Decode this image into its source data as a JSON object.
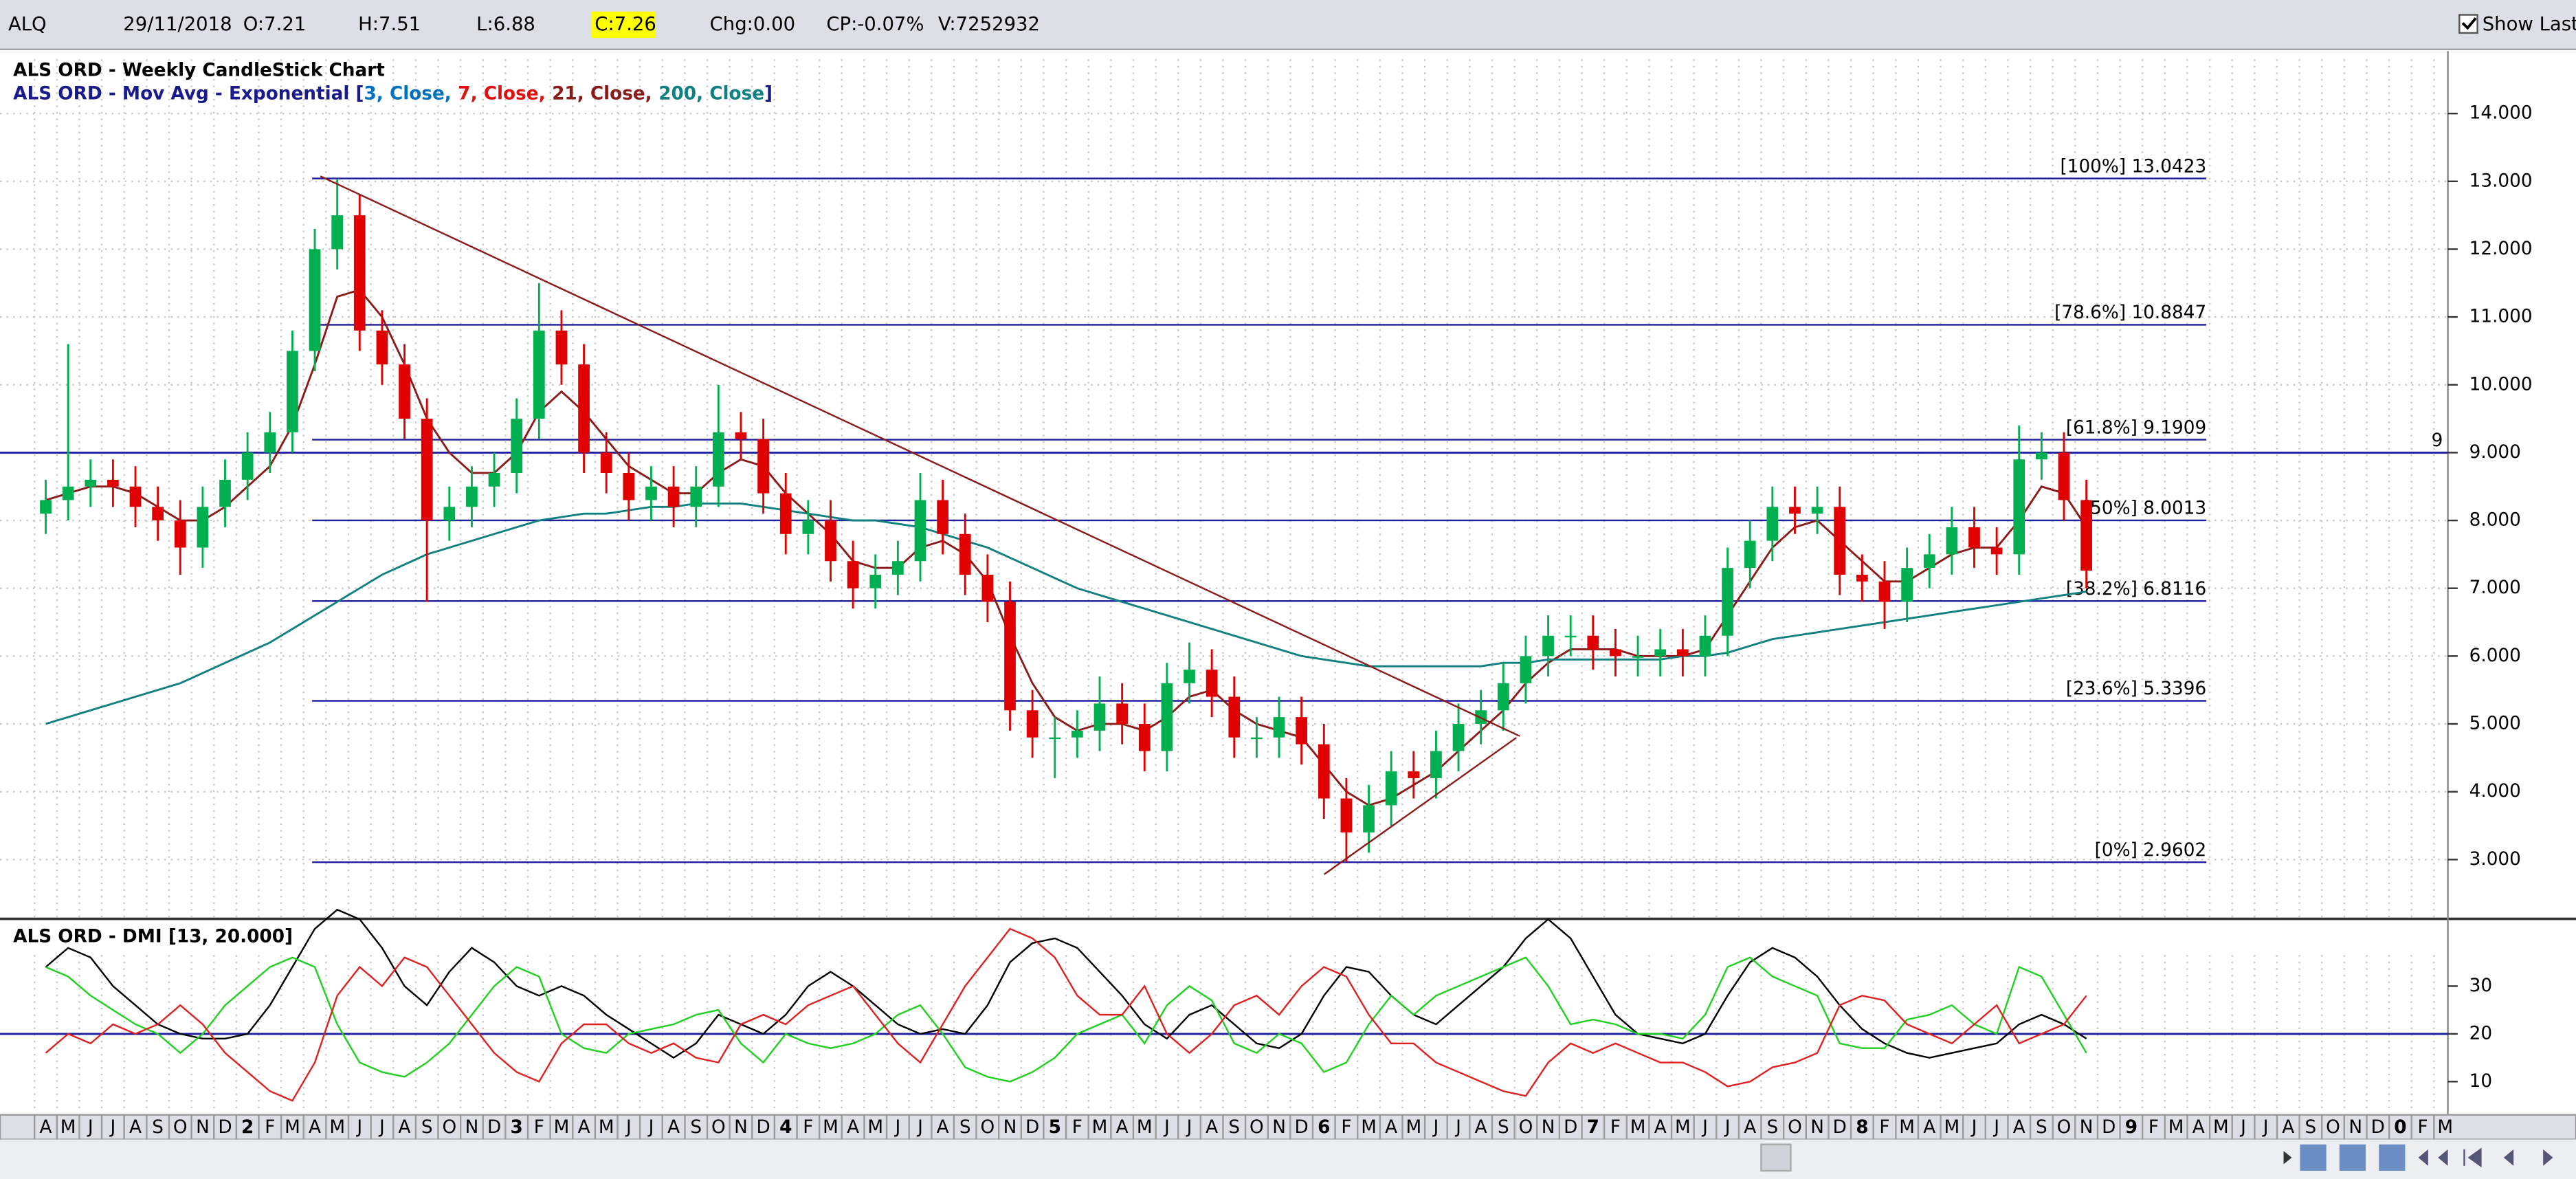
{
  "header": {
    "symbol": "ALQ",
    "date": "29/11/2018",
    "open": "O:7.21",
    "high": "H:7.51",
    "low": "L:6.88",
    "close": "C:7.26",
    "change": "Chg:0.00",
    "change_pct": "CP:-0.07%",
    "volume": "V:7252932",
    "show_last": "Show Last"
  },
  "chart_data": [
    {
      "type": "candlestick",
      "title": "ALS ORD - Weekly CandleStick Chart",
      "legend_prefix": "ALS ORD - Mov Avg - Exponential [",
      "legend": [
        {
          "text": "3, Close,",
          "color": "#0070c0"
        },
        {
          "text": "7, Close,",
          "color": "#e01010"
        },
        {
          "text": "21, Close,",
          "color": "#8b1a1a"
        },
        {
          "text": "200, Close",
          "color": "#108080"
        }
      ],
      "legend_suffix": "]",
      "categories": [
        "A",
        "M",
        "J",
        "J",
        "A",
        "S",
        "O",
        "N",
        "D",
        "2",
        "F",
        "M",
        "A",
        "M",
        "J",
        "J",
        "A",
        "S",
        "O",
        "N",
        "D",
        "3",
        "F",
        "M",
        "A",
        "M",
        "J",
        "J",
        "A",
        "S",
        "O",
        "N",
        "D",
        "4",
        "F",
        "M",
        "A",
        "M",
        "J",
        "J",
        "A",
        "S",
        "O",
        "N",
        "D",
        "5",
        "F",
        "M",
        "A",
        "M",
        "J",
        "J",
        "A",
        "S",
        "O",
        "N",
        "D",
        "6",
        "F",
        "M",
        "A",
        "M",
        "J",
        "J",
        "A",
        "S",
        "O",
        "N",
        "D",
        "7",
        "F",
        "M",
        "A",
        "M",
        "J",
        "J",
        "A",
        "S",
        "O",
        "N",
        "D",
        "8",
        "F",
        "M",
        "A",
        "M",
        "J",
        "J",
        "A",
        "S",
        "O",
        "N",
        "D",
        "9",
        "F",
        "M",
        "A",
        "M",
        "J",
        "J",
        "A",
        "S",
        "O",
        "N",
        "D",
        "0",
        "F",
        "M"
      ],
      "open": [
        8.1,
        8.3,
        8.5,
        8.6,
        8.5,
        8.2,
        8.0,
        7.6,
        8.2,
        8.6,
        9.0,
        9.3,
        10.5,
        12.0,
        12.5,
        10.8,
        10.3,
        9.5,
        8.0,
        8.2,
        8.5,
        8.7,
        9.5,
        10.8,
        10.3,
        9.0,
        8.7,
        8.3,
        8.5,
        8.2,
        8.5,
        9.3,
        9.2,
        8.4,
        7.8,
        8.0,
        7.4,
        7.0,
        7.2,
        7.4,
        8.3,
        7.8,
        7.2,
        6.8,
        5.2,
        4.8,
        4.8,
        4.9,
        5.3,
        5.0,
        4.6,
        5.6,
        5.8,
        5.4,
        4.8,
        4.8,
        5.1,
        4.7,
        3.9,
        3.4,
        3.8,
        4.3,
        4.2,
        4.6,
        5.0,
        5.2,
        5.6,
        6.0,
        6.3,
        6.3,
        6.1,
        6.0,
        6.0,
        6.1,
        6.0,
        6.3,
        7.3,
        7.7,
        8.2,
        8.1,
        8.2,
        7.2,
        7.1,
        6.8,
        7.3,
        7.5,
        7.9,
        7.6,
        7.5,
        8.9,
        9.0,
        8.3,
        null,
        null,
        null,
        null,
        null,
        null,
        null,
        null,
        null,
        null,
        null,
        null,
        null,
        null,
        null,
        null
      ],
      "high": [
        8.6,
        10.6,
        8.9,
        8.9,
        8.8,
        8.5,
        8.3,
        8.5,
        8.9,
        9.3,
        9.6,
        10.8,
        12.3,
        13.04,
        12.8,
        11.1,
        10.6,
        9.8,
        8.5,
        8.8,
        9.0,
        9.8,
        11.5,
        11.1,
        10.6,
        9.3,
        9.0,
        8.8,
        8.8,
        8.8,
        10.0,
        9.6,
        9.5,
        8.7,
        8.3,
        8.3,
        7.7,
        7.5,
        7.7,
        8.7,
        8.6,
        8.1,
        7.5,
        7.1,
        5.5,
        5.1,
        5.2,
        5.7,
        5.6,
        5.3,
        5.9,
        6.2,
        6.1,
        5.7,
        5.1,
        5.4,
        5.4,
        5.0,
        4.2,
        4.1,
        4.6,
        4.6,
        4.9,
        5.3,
        5.5,
        5.9,
        6.3,
        6.6,
        6.6,
        6.6,
        6.4,
        6.3,
        6.4,
        6.4,
        6.6,
        7.6,
        8.0,
        8.5,
        8.5,
        8.5,
        8.5,
        7.5,
        7.4,
        7.6,
        7.8,
        8.2,
        8.2,
        7.9,
        9.4,
        9.3,
        9.3,
        8.6,
        null,
        null,
        null,
        null,
        null,
        null,
        null,
        null,
        null,
        null,
        null,
        null,
        null,
        null,
        null,
        null
      ],
      "low": [
        7.8,
        8.0,
        8.2,
        8.2,
        7.9,
        7.7,
        7.2,
        7.3,
        7.9,
        8.3,
        8.7,
        9.0,
        10.2,
        11.7,
        10.5,
        10.0,
        9.2,
        6.8,
        7.7,
        7.9,
        8.2,
        8.4,
        9.2,
        10.0,
        8.7,
        8.4,
        8.0,
        8.0,
        7.9,
        7.9,
        8.2,
        8.9,
        8.1,
        7.5,
        7.5,
        7.1,
        6.7,
        6.7,
        6.9,
        7.1,
        7.5,
        6.9,
        6.5,
        4.9,
        4.5,
        4.2,
        4.5,
        4.6,
        4.7,
        4.3,
        4.3,
        5.3,
        5.1,
        4.5,
        4.5,
        4.5,
        4.4,
        3.6,
        2.96,
        3.1,
        3.5,
        3.9,
        3.9,
        4.3,
        4.7,
        4.9,
        5.3,
        5.7,
        6.0,
        5.8,
        5.7,
        5.7,
        5.7,
        5.7,
        5.7,
        6.0,
        7.0,
        7.4,
        7.8,
        7.8,
        6.9,
        6.8,
        6.4,
        6.5,
        7.0,
        7.2,
        7.3,
        7.2,
        7.2,
        8.6,
        8.0,
        7.0,
        null,
        null,
        null,
        null,
        null,
        null,
        null,
        null,
        null,
        null,
        null,
        null,
        null,
        null,
        null,
        null
      ],
      "close": [
        8.3,
        8.5,
        8.6,
        8.5,
        8.2,
        8.0,
        7.6,
        8.2,
        8.6,
        9.0,
        9.3,
        10.5,
        12.0,
        12.5,
        10.8,
        10.3,
        9.5,
        8.0,
        8.2,
        8.5,
        8.7,
        9.5,
        10.8,
        10.3,
        9.0,
        8.7,
        8.3,
        8.5,
        8.2,
        8.5,
        9.3,
        9.2,
        8.4,
        7.8,
        8.0,
        7.4,
        7.0,
        7.2,
        7.4,
        8.3,
        7.8,
        7.2,
        6.8,
        5.2,
        4.8,
        4.8,
        4.9,
        5.3,
        5.0,
        4.6,
        5.6,
        5.8,
        5.4,
        4.8,
        4.8,
        5.1,
        4.7,
        3.9,
        3.4,
        3.8,
        4.3,
        4.2,
        4.6,
        5.0,
        5.2,
        5.6,
        6.0,
        6.3,
        6.3,
        6.1,
        6.0,
        6.0,
        6.1,
        6.0,
        6.3,
        7.3,
        7.7,
        8.2,
        8.1,
        8.2,
        7.2,
        7.1,
        6.8,
        7.3,
        7.5,
        7.9,
        7.6,
        7.5,
        8.9,
        9.0,
        8.3,
        7.26,
        null,
        null,
        null,
        null,
        null,
        null,
        null,
        null,
        null,
        null,
        null,
        null,
        null,
        null,
        null,
        null
      ],
      "up_color": "#00b050",
      "down_color": "#e00000",
      "lines": [
        {
          "color": "#8b1a1a",
          "values": [
            8.3,
            8.4,
            8.5,
            8.5,
            8.4,
            8.2,
            8.0,
            8.0,
            8.2,
            8.5,
            8.8,
            9.4,
            10.3,
            11.3,
            11.4,
            11.0,
            10.3,
            9.5,
            9.0,
            8.7,
            8.7,
            9.0,
            9.6,
            9.9,
            9.6,
            9.2,
            8.8,
            8.6,
            8.4,
            8.4,
            8.7,
            8.9,
            8.8,
            8.4,
            8.1,
            7.8,
            7.4,
            7.3,
            7.3,
            7.6,
            7.7,
            7.5,
            7.1,
            6.3,
            5.6,
            5.1,
            4.9,
            5.0,
            5.0,
            4.9,
            5.1,
            5.4,
            5.5,
            5.2,
            5.0,
            4.9,
            4.8,
            4.4,
            4.0,
            3.8,
            3.9,
            4.1,
            4.3,
            4.6,
            4.9,
            5.2,
            5.6,
            5.9,
            6.1,
            6.1,
            6.1,
            6.0,
            6.0,
            6.0,
            6.1,
            6.6,
            7.1,
            7.6,
            7.9,
            8.0,
            7.7,
            7.4,
            7.1,
            7.1,
            7.3,
            7.5,
            7.6,
            7.6,
            8.0,
            8.5,
            8.4,
            7.9,
            null,
            null,
            null,
            null,
            null,
            null,
            null,
            null,
            null,
            null,
            null,
            null,
            null,
            null,
            null,
            null
          ]
        },
        {
          "color": "#108080",
          "values": [
            5.0,
            5.1,
            5.2,
            5.3,
            5.4,
            5.5,
            5.6,
            5.75,
            5.9,
            6.05,
            6.2,
            6.4,
            6.6,
            6.8,
            7.0,
            7.2,
            7.35,
            7.5,
            7.6,
            7.7,
            7.8,
            7.9,
            8.0,
            8.05,
            8.1,
            8.1,
            8.15,
            8.2,
            8.2,
            8.25,
            8.25,
            8.25,
            8.2,
            8.15,
            8.1,
            8.05,
            8.0,
            8.0,
            7.95,
            7.9,
            7.8,
            7.7,
            7.6,
            7.45,
            7.3,
            7.15,
            7.0,
            6.9,
            6.8,
            6.7,
            6.6,
            6.5,
            6.4,
            6.3,
            6.2,
            6.1,
            6.0,
            5.95,
            5.9,
            5.85,
            5.85,
            5.85,
            5.85,
            5.85,
            5.85,
            5.9,
            5.9,
            5.95,
            5.95,
            5.95,
            5.95,
            5.95,
            5.95,
            6.0,
            6.0,
            6.05,
            6.15,
            6.25,
            6.3,
            6.35,
            6.4,
            6.45,
            6.5,
            6.55,
            6.6,
            6.65,
            6.7,
            6.75,
            6.8,
            6.85,
            6.9,
            6.95,
            null,
            null,
            null,
            null,
            null,
            null,
            null,
            null,
            null,
            null,
            null,
            null,
            null,
            null,
            null,
            null
          ]
        }
      ],
      "levels_color": "#1f1f9f",
      "levels": [
        {
          "value": 13.0423,
          "label": "[100%] 13.0423"
        },
        {
          "value": 10.8847,
          "label": "[78.6%] 10.8847"
        },
        {
          "value": 9.1909,
          "label": "[61.8%] 9.1909"
        },
        {
          "value": 8.0013,
          "label": "[50%] 8.0013"
        },
        {
          "value": 6.8116,
          "label": "[38.2%] 6.8116"
        },
        {
          "value": 5.3396,
          "label": "[23.6%] 5.3396"
        },
        {
          "value": 2.9602,
          "label": "[0%] 2.9602"
        }
      ],
      "hline": {
        "value": 9,
        "label": "9"
      },
      "ylim": [
        2.15,
        14.8
      ],
      "yticks": [
        {
          "value": 3,
          "label": "3.000"
        },
        {
          "value": 4,
          "label": "4.000"
        },
        {
          "value": 5,
          "label": "5.000"
        },
        {
          "value": 6,
          "label": "6.000"
        },
        {
          "value": 7,
          "label": "7.000"
        },
        {
          "value": 8,
          "label": "8.000"
        },
        {
          "value": 9,
          "label": "9.000"
        },
        {
          "value": 10,
          "label": "10.000"
        },
        {
          "value": 11,
          "label": "11.000"
        },
        {
          "value": 12,
          "label": "12.000"
        },
        {
          "value": 13,
          "label": "13.000"
        },
        {
          "value": 14,
          "label": "14.000"
        }
      ],
      "grid": true
    },
    {
      "type": "line",
      "title": "ALS ORD - DMI [13, 20.000]",
      "ylim": [
        3.4,
        43.4
      ],
      "yticks": [
        10,
        20,
        30
      ],
      "level": 20,
      "level_color": "#1f1f9f",
      "series": [
        {
          "color": "#000000",
          "values": [
            34,
            38,
            36,
            30,
            26,
            22,
            20,
            19,
            19,
            20,
            26,
            34,
            42,
            46,
            44,
            38,
            30,
            26,
            33,
            38,
            35,
            30,
            28,
            30,
            28,
            24,
            21,
            18,
            15,
            18,
            24,
            22,
            20,
            24,
            30,
            33,
            30,
            26,
            22,
            20,
            21,
            20,
            26,
            35,
            39,
            40,
            38,
            33,
            28,
            22,
            19,
            24,
            26,
            22,
            18,
            17,
            20,
            28,
            34,
            33,
            28,
            24,
            22,
            26,
            30,
            34,
            40,
            44,
            40,
            32,
            24,
            20,
            19,
            18,
            20,
            28,
            35,
            38,
            36,
            32,
            26,
            21,
            18,
            16,
            15,
            16,
            17,
            18,
            22,
            24,
            22,
            19,
            null,
            null,
            null,
            null,
            null,
            null,
            null,
            null,
            null,
            null,
            null,
            null,
            null,
            null,
            null,
            null
          ]
        },
        {
          "color": "#20d020",
          "values": [
            34,
            32,
            28,
            25,
            22,
            20,
            16,
            20,
            26,
            30,
            34,
            36,
            34,
            22,
            14,
            12,
            11,
            14,
            18,
            24,
            30,
            34,
            32,
            20,
            17,
            16,
            20,
            21,
            22,
            24,
            25,
            18,
            14,
            20,
            18,
            17,
            18,
            20,
            24,
            26,
            20,
            13,
            11,
            10,
            12,
            15,
            20,
            22,
            24,
            18,
            26,
            30,
            27,
            18,
            16,
            20,
            18,
            12,
            14,
            22,
            28,
            24,
            28,
            30,
            32,
            34,
            36,
            30,
            22,
            23,
            22,
            20,
            20,
            19,
            24,
            34,
            36,
            32,
            30,
            28,
            18,
            17,
            17,
            23,
            24,
            26,
            22,
            20,
            34,
            32,
            24,
            16,
            null,
            null,
            null,
            null,
            null,
            null,
            null,
            null,
            null,
            null,
            null,
            null,
            null,
            null,
            null,
            null
          ]
        },
        {
          "color": "#e02020",
          "values": [
            16,
            20,
            18,
            22,
            20,
            22,
            26,
            22,
            16,
            12,
            8,
            6,
            14,
            28,
            34,
            30,
            36,
            34,
            28,
            22,
            16,
            12,
            10,
            18,
            22,
            22,
            18,
            16,
            18,
            15,
            14,
            22,
            24,
            22,
            26,
            28,
            30,
            24,
            18,
            14,
            22,
            30,
            36,
            42,
            40,
            36,
            28,
            24,
            24,
            30,
            20,
            16,
            20,
            26,
            28,
            24,
            30,
            34,
            32,
            24,
            18,
            18,
            14,
            12,
            10,
            8,
            7,
            14,
            18,
            16,
            18,
            16,
            14,
            14,
            12,
            9,
            10,
            13,
            14,
            16,
            26,
            28,
            27,
            22,
            20,
            18,
            22,
            26,
            18,
            20,
            22,
            28,
            null,
            null,
            null,
            null,
            null,
            null,
            null,
            null,
            null,
            null,
            null,
            null,
            null,
            null,
            null,
            null
          ]
        }
      ]
    }
  ]
}
